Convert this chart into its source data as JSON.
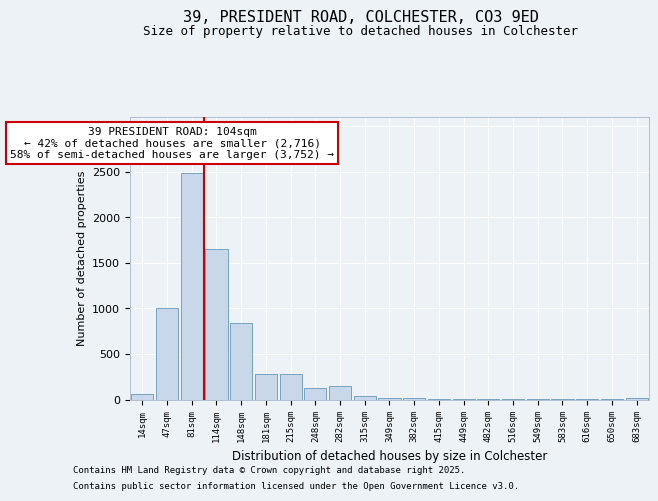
{
  "title1": "39, PRESIDENT ROAD, COLCHESTER, CO3 9ED",
  "title2": "Size of property relative to detached houses in Colchester",
  "xlabel": "Distribution of detached houses by size in Colchester",
  "ylabel": "Number of detached properties",
  "categories": [
    "14sqm",
    "47sqm",
    "81sqm",
    "114sqm",
    "148sqm",
    "181sqm",
    "215sqm",
    "248sqm",
    "282sqm",
    "315sqm",
    "349sqm",
    "382sqm",
    "415sqm",
    "449sqm",
    "482sqm",
    "516sqm",
    "549sqm",
    "583sqm",
    "616sqm",
    "650sqm",
    "683sqm"
  ],
  "values": [
    55,
    1000,
    2490,
    1650,
    840,
    280,
    280,
    130,
    150,
    40,
    20,
    15,
    10,
    5,
    5,
    3,
    3,
    2,
    2,
    2,
    20
  ],
  "bar_color": "#c8d8ea",
  "bar_edge_color": "#6699bb",
  "red_line_x": 2.5,
  "annotation_text": "39 PRESIDENT ROAD: 104sqm\n← 42% of detached houses are smaller (2,716)\n58% of semi-detached houses are larger (3,752) →",
  "annotation_box_color": "#ffffff",
  "annotation_box_edge": "#cc0000",
  "ylim": [
    0,
    3100
  ],
  "yticks": [
    0,
    500,
    1000,
    1500,
    2000,
    2500,
    3000
  ],
  "footer1": "Contains HM Land Registry data © Crown copyright and database right 2025.",
  "footer2": "Contains public sector information licensed under the Open Government Licence v3.0.",
  "bg_color": "#edf2f7",
  "plot_bg_color": "#edf2f7",
  "grid_color": "#ffffff",
  "title1_fontsize": 11,
  "title2_fontsize": 9,
  "footer_fontsize": 6.5,
  "ann_fontsize": 8
}
